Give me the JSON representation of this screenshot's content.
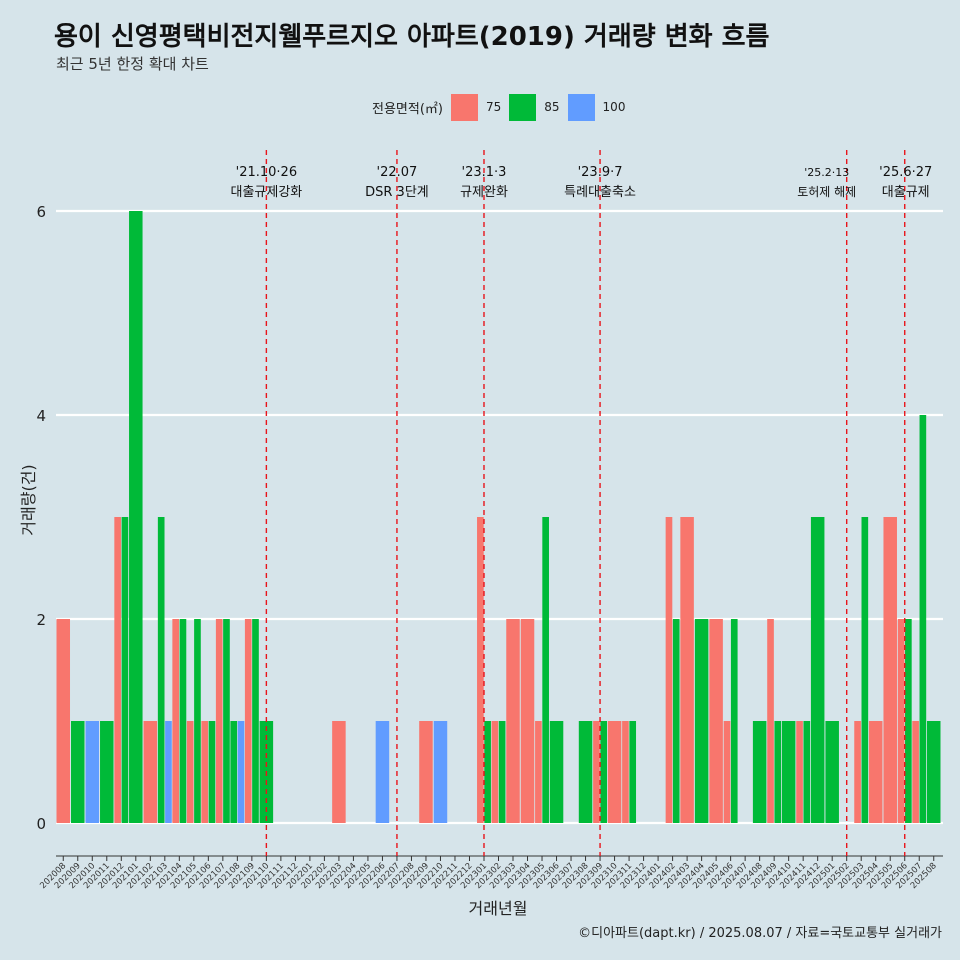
{
  "title": "용이 신영평택비전지웰푸르지오 아파트(2019) 거래량 변화 흐름",
  "subtitle": "최근 5년 한정 확대 차트",
  "caption": "©디아파트(dapt.kr) / 2025.08.07 / 자료=국토교통부 실거래가",
  "legend": {
    "title": "전용면적(㎡)",
    "items": [
      {
        "label": "75",
        "color": "#f8766d"
      },
      {
        "label": "85",
        "color": "#00ba38"
      },
      {
        "label": "100",
        "color": "#619cff"
      }
    ]
  },
  "chart_data": {
    "type": "bar",
    "xlabel": "거래년월",
    "ylabel": "거래량(건)",
    "ylim": [
      0,
      6.5
    ],
    "yticks": [
      0,
      2,
      4,
      6
    ],
    "grid": true,
    "categories": [
      "202008",
      "202009",
      "202010",
      "202011",
      "202012",
      "202101",
      "202102",
      "202103",
      "202104",
      "202105",
      "202106",
      "202107",
      "202108",
      "202109",
      "202110",
      "202111",
      "202112",
      "202201",
      "202202",
      "202203",
      "202204",
      "202205",
      "202206",
      "202207",
      "202208",
      "202209",
      "202210",
      "202211",
      "202212",
      "202301",
      "202302",
      "202303",
      "202304",
      "202305",
      "202306",
      "202307",
      "202308",
      "202309",
      "202310",
      "202311",
      "202312",
      "202401",
      "202402",
      "202403",
      "202404",
      "202405",
      "202406",
      "202407",
      "202408",
      "202409",
      "202410",
      "202411",
      "202412",
      "202501",
      "202502",
      "202503",
      "202504",
      "202505",
      "202506",
      "202507",
      "202508"
    ],
    "series": [
      {
        "name": "75",
        "color": "#f8766d",
        "values": [
          2,
          0,
          0,
          0,
          3,
          0,
          1,
          0,
          2,
          1,
          1,
          2,
          0,
          2,
          0,
          0,
          0,
          0,
          0,
          1,
          0,
          0,
          0,
          0,
          0,
          1,
          0,
          0,
          0,
          3,
          1,
          2,
          2,
          1,
          0,
          0,
          0,
          1,
          1,
          1,
          0,
          0,
          3,
          3,
          0,
          2,
          1,
          0,
          0,
          2,
          0,
          1,
          0,
          0,
          0,
          1,
          1,
          3,
          2,
          1,
          0
        ]
      },
      {
        "name": "85",
        "color": "#00ba38",
        "values": [
          0,
          1,
          0,
          1,
          3,
          6,
          0,
          3,
          2,
          2,
          1,
          2,
          1,
          2,
          1,
          0,
          0,
          0,
          0,
          0,
          0,
          0,
          0,
          0,
          0,
          0,
          0,
          0,
          0,
          1,
          1,
          0,
          0,
          3,
          1,
          0,
          1,
          1,
          0,
          1,
          0,
          0,
          2,
          0,
          2,
          0,
          2,
          0,
          1,
          1,
          1,
          1,
          3,
          1,
          0,
          3,
          0,
          0,
          2,
          4,
          1
        ]
      },
      {
        "name": "100",
        "color": "#619cff",
        "values": [
          0,
          0,
          1,
          0,
          0,
          0,
          0,
          1,
          0,
          0,
          0,
          0,
          1,
          0,
          0,
          0,
          0,
          0,
          0,
          0,
          0,
          0,
          1,
          0,
          0,
          0,
          1,
          0,
          0,
          0,
          0,
          0,
          0,
          0,
          0,
          0,
          0,
          0,
          0,
          0,
          0,
          0,
          0,
          0,
          0,
          0,
          0,
          0,
          0,
          0,
          0,
          0,
          0,
          0,
          0,
          0,
          0,
          0,
          0,
          0,
          0
        ]
      }
    ],
    "annotations": [
      {
        "date": "202110",
        "label1": "'21.10·26",
        "label2": "대출규제강화"
      },
      {
        "date": "202207",
        "label1": "'22.07",
        "label2": "DSR 3단계"
      },
      {
        "date": "202301",
        "label1": "'23.1·3",
        "label2": "규제완화"
      },
      {
        "date": "202309",
        "label1": "'23.9·7",
        "label2": "특례대출축소"
      },
      {
        "date": "202502",
        "label1": "'25.2·13",
        "label2": "토허제 해제"
      },
      {
        "date": "202506",
        "label1": "'25.6·27",
        "label2": "대출규제"
      }
    ]
  }
}
